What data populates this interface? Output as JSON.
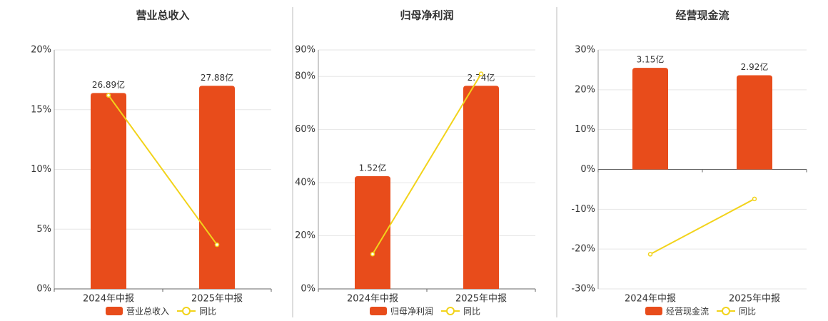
{
  "chart_data": [
    {
      "type": "bar-line",
      "title": "营业总收入",
      "categories": [
        "2024年中报",
        "2025年中报"
      ],
      "series": [
        {
          "name": "营业总收入",
          "type": "bar",
          "color": "#e84c1b",
          "values": [
            26.89,
            27.88
          ],
          "value_labels": [
            "26.89亿",
            "27.88亿"
          ]
        },
        {
          "name": "同比",
          "type": "line",
          "color": "#f2d31b",
          "values": [
            16.2,
            3.7
          ]
        }
      ],
      "ylim": [
        0,
        20
      ],
      "yticks": [
        {
          "value": 0,
          "label": "0%"
        },
        {
          "value": 5,
          "label": "5%"
        },
        {
          "value": 10,
          "label": "10%"
        },
        {
          "value": 15,
          "label": "15%"
        },
        {
          "value": 20,
          "label": "20%"
        }
      ],
      "grid": true
    },
    {
      "type": "bar-line",
      "title": "归母净利润",
      "categories": [
        "2024年中报",
        "2025年中报"
      ],
      "series": [
        {
          "name": "归母净利润",
          "type": "bar",
          "color": "#e84c1b",
          "values": [
            1.52,
            2.74
          ],
          "value_labels": [
            "1.52亿",
            "2.74亿"
          ]
        },
        {
          "name": "同比",
          "type": "line",
          "color": "#f2d31b",
          "values": [
            13.1,
            81
          ]
        }
      ],
      "ylim": [
        0,
        90
      ],
      "yticks": [
        {
          "value": 0,
          "label": "0%"
        },
        {
          "value": 20,
          "label": "20%"
        },
        {
          "value": 40,
          "label": "40%"
        },
        {
          "value": 60,
          "label": "60%"
        },
        {
          "value": 80,
          "label": "80%"
        },
        {
          "value": 90,
          "label": "90%"
        }
      ],
      "grid": true
    },
    {
      "type": "bar-line",
      "title": "经营现金流",
      "categories": [
        "2024年中报",
        "2025年中报"
      ],
      "series": [
        {
          "name": "经营现金流",
          "type": "bar",
          "color": "#e84c1b",
          "values": [
            3.15,
            2.92
          ],
          "value_labels": [
            "3.15亿",
            "2.92亿"
          ]
        },
        {
          "name": "同比",
          "type": "line",
          "color": "#f2d31b",
          "values": [
            -21.3,
            -7.4
          ]
        }
      ],
      "ylim": [
        -30,
        30
      ],
      "yticks": [
        {
          "value": -30,
          "label": "-30%"
        },
        {
          "value": -20,
          "label": "-20%"
        },
        {
          "value": -10,
          "label": "-10%"
        },
        {
          "value": 0,
          "label": "0%"
        },
        {
          "value": 10,
          "label": "10%"
        },
        {
          "value": 20,
          "label": "20%"
        },
        {
          "value": 30,
          "label": "30%"
        }
      ],
      "grid": true
    }
  ]
}
